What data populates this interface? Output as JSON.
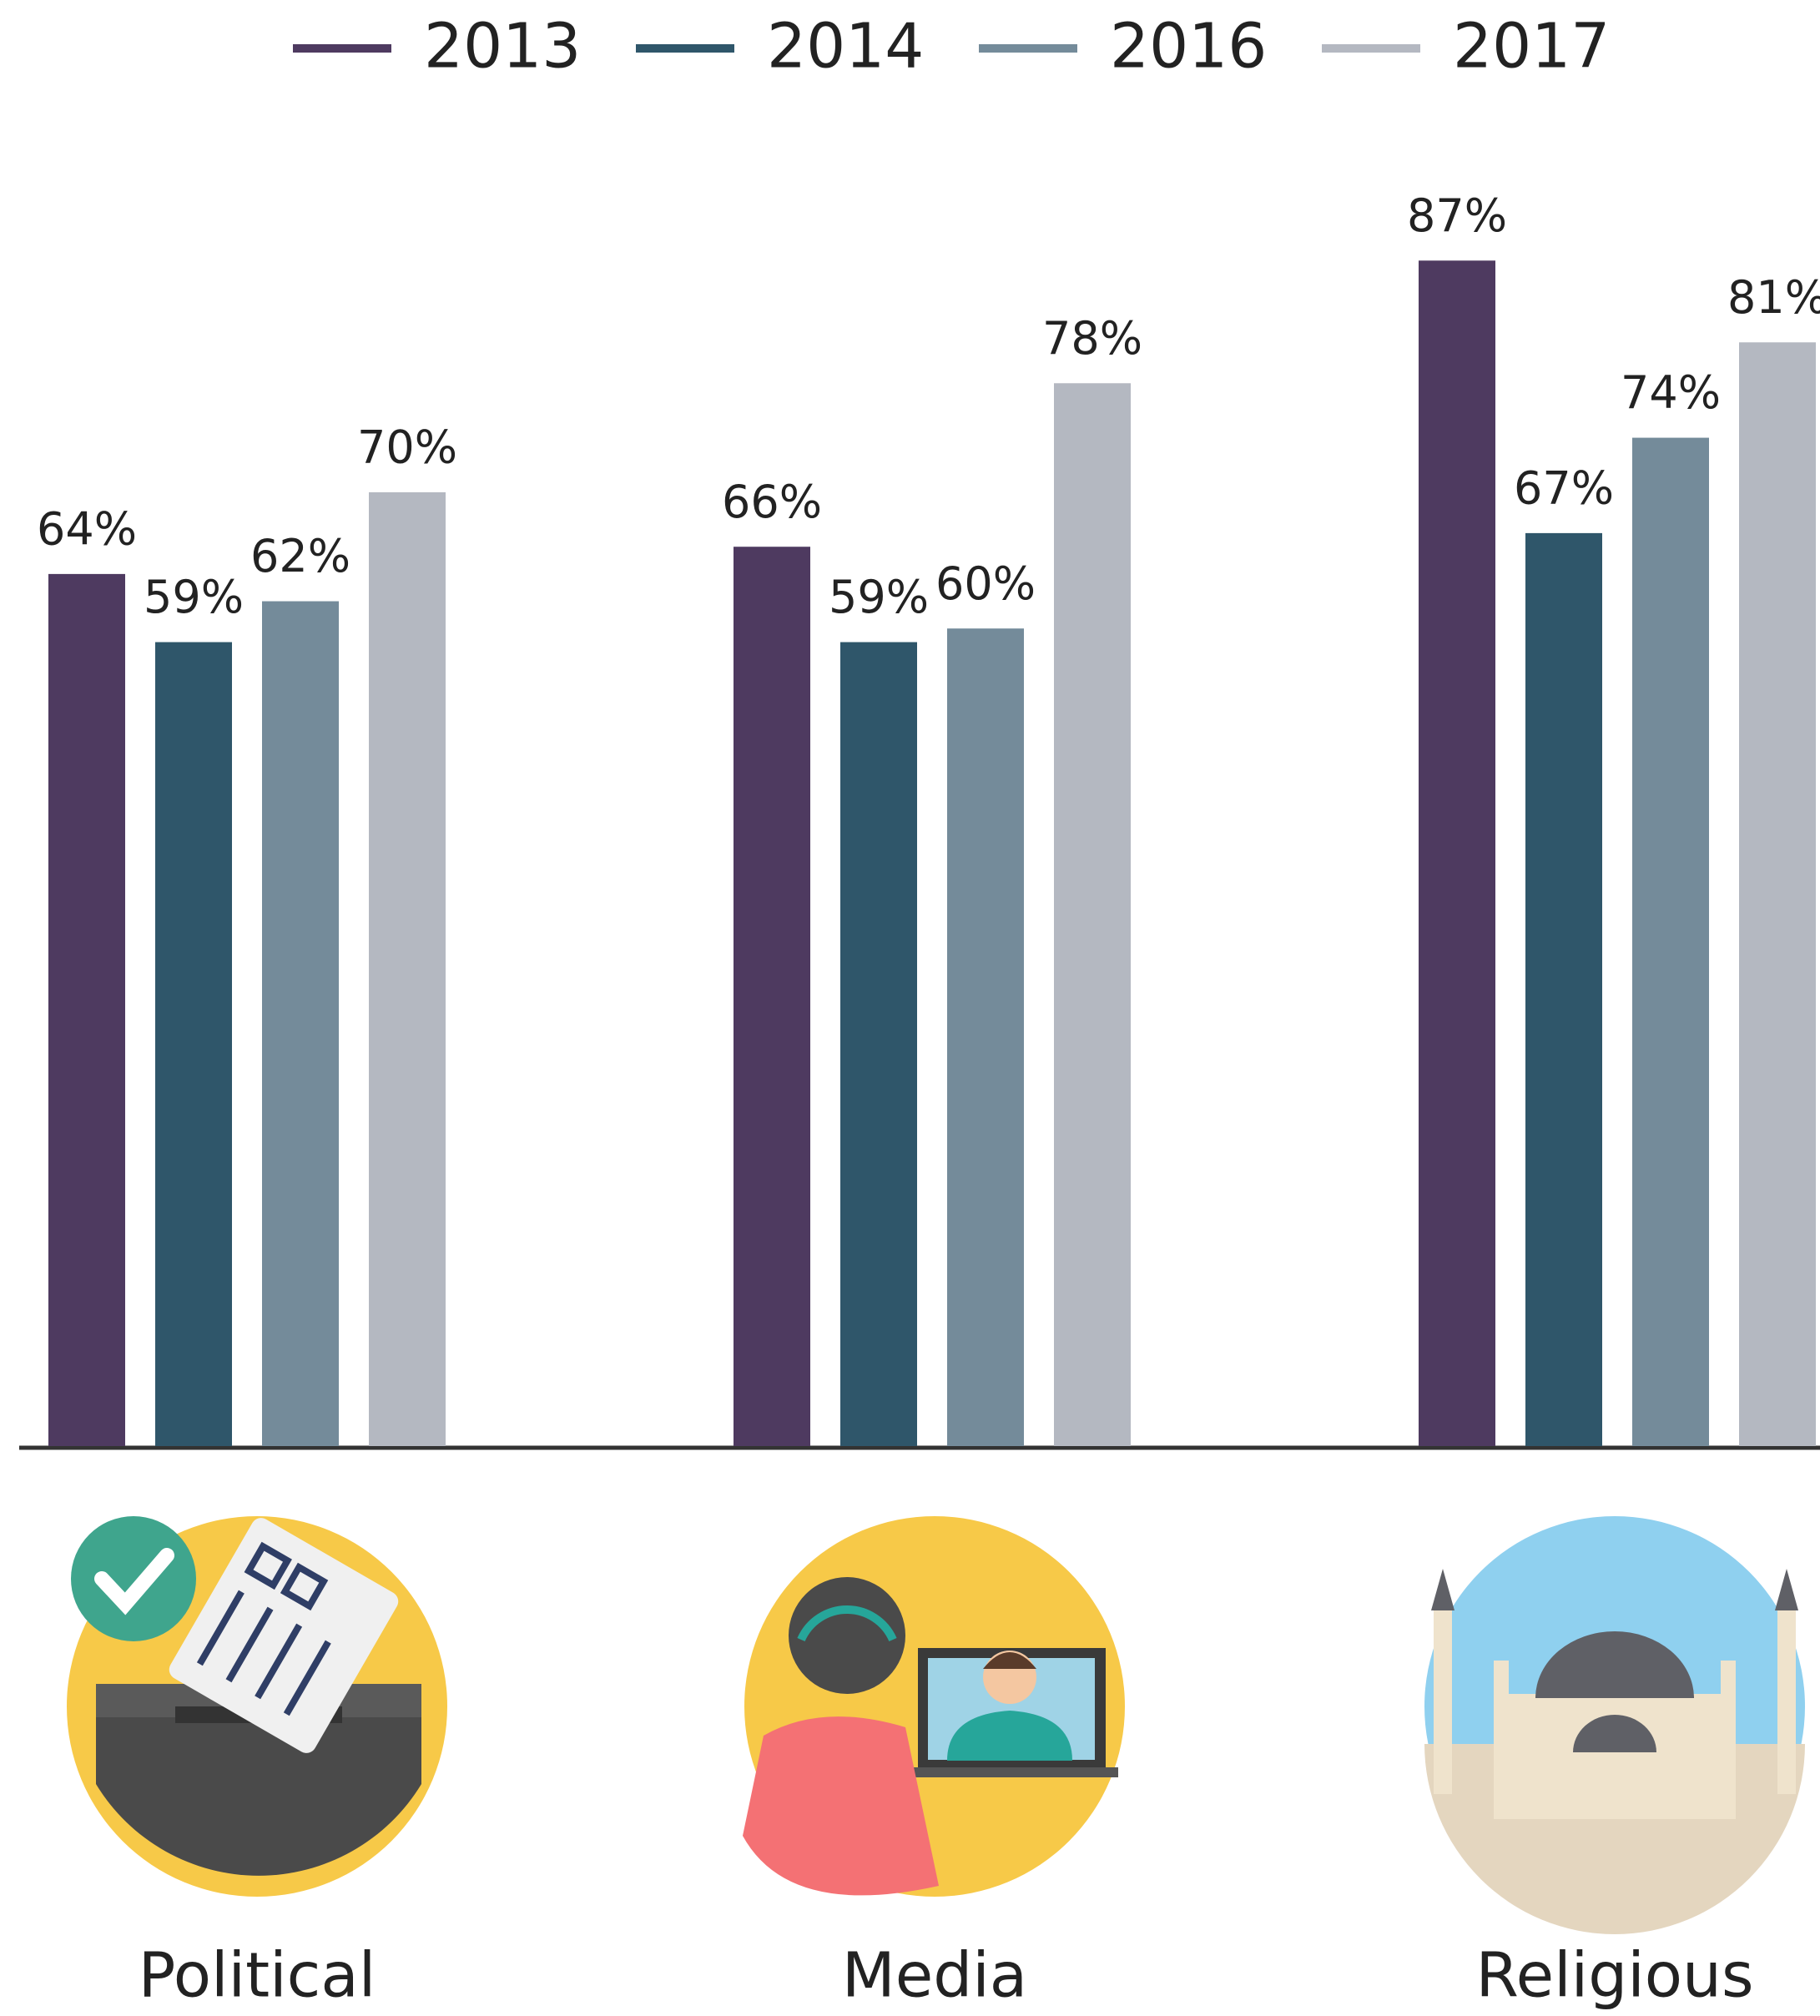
{
  "chart_data": {
    "type": "bar",
    "categories": [
      "Political",
      "Media",
      "Religious"
    ],
    "series": [
      {
        "name": "2013",
        "color": "#4e3a60",
        "values": [
          64,
          66,
          87
        ],
        "value_labels": [
          "64%",
          "66%",
          "87%"
        ]
      },
      {
        "name": "2014",
        "color": "#2f566a",
        "values": [
          59,
          59,
          67
        ],
        "value_labels": [
          "59%",
          "59%",
          "67%"
        ]
      },
      {
        "name": "2016",
        "color": "#748b9a",
        "values": [
          62,
          60,
          74
        ],
        "value_labels": [
          "62%",
          "60%",
          "74%"
        ]
      },
      {
        "name": "2017",
        "color": "#b4b8c1",
        "values": [
          70,
          78,
          81
        ],
        "value_labels": [
          "70%",
          "78%",
          "81%"
        ]
      }
    ],
    "ylim": [
      0,
      100
    ]
  }
}
